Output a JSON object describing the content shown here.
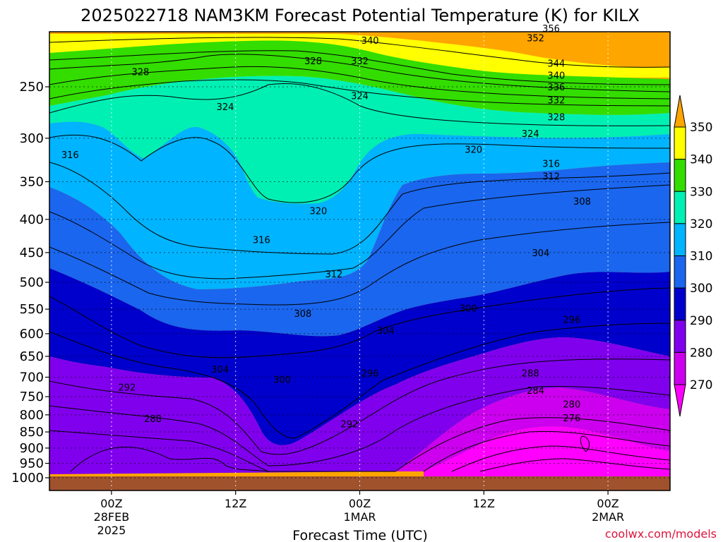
{
  "header": {
    "title": "2025022718 NAM3KM Forecast Potential Temperature (K) for KILX"
  },
  "footer": {
    "credit": "coolwx.com/models"
  },
  "chart_data": {
    "type": "heatmap",
    "title": "2025022718 NAM3KM Forecast Potential Temperature (K) for KILX",
    "xlabel": "Forecast Time (UTC)",
    "ylabel": "",
    "x_ticks": [
      {
        "hour": 6,
        "lines": [
          "00Z",
          "28FEB",
          "2025"
        ]
      },
      {
        "hour": 18,
        "lines": [
          "12Z"
        ]
      },
      {
        "hour": 30,
        "lines": [
          "00Z",
          "1MAR"
        ]
      },
      {
        "hour": 42,
        "lines": [
          "12Z"
        ]
      },
      {
        "hour": 54,
        "lines": [
          "00Z",
          "2MAR"
        ]
      }
    ],
    "xlim_hours": [
      0,
      60
    ],
    "y_ticks": [
      250,
      300,
      350,
      400,
      450,
      500,
      550,
      600,
      650,
      700,
      750,
      800,
      850,
      900,
      950,
      1000
    ],
    "ylim_hpa": [
      1016,
      200
    ],
    "y_scale": "log-pressure",
    "grid": true,
    "colorbar": {
      "levels": [
        270,
        280,
        290,
        300,
        310,
        320,
        330,
        340,
        350
      ],
      "labels": [
        "270",
        "280",
        "290",
        "300",
        "310",
        "320",
        "330",
        "340",
        "350"
      ],
      "colors": [
        "#ff00ff",
        "#cc00ee",
        "#8000ee",
        "#0000cc",
        "#1a66ee",
        "#00b4ff",
        "#00f0b4",
        "#33dd00",
        "#ffff00",
        "#ffa500"
      ]
    },
    "contour_interval": 4,
    "contour_labels": [
      {
        "value": "356",
        "hour": 48.5,
        "p": 203
      },
      {
        "value": "352",
        "hour": 47.0,
        "p": 210
      },
      {
        "value": "340",
        "hour": 31.0,
        "p": 212
      },
      {
        "value": "332",
        "hour": 30.0,
        "p": 228
      },
      {
        "value": "328",
        "hour": 25.5,
        "p": 228
      },
      {
        "value": "328",
        "hour": 8.8,
        "p": 237
      },
      {
        "value": "344",
        "hour": 49.0,
        "p": 230
      },
      {
        "value": "340",
        "hour": 49.0,
        "p": 240
      },
      {
        "value": "336",
        "hour": 49.0,
        "p": 250
      },
      {
        "value": "332",
        "hour": 49.0,
        "p": 262
      },
      {
        "value": "324",
        "hour": 30.0,
        "p": 258
      },
      {
        "value": "324",
        "hour": 17.0,
        "p": 268
      },
      {
        "value": "328",
        "hour": 49.0,
        "p": 278
      },
      {
        "value": "324",
        "hour": 46.5,
        "p": 295
      },
      {
        "value": "320",
        "hour": 41.0,
        "p": 312
      },
      {
        "value": "316",
        "hour": 2.0,
        "p": 318
      },
      {
        "value": "316",
        "hour": 48.5,
        "p": 328
      },
      {
        "value": "312",
        "hour": 48.5,
        "p": 343
      },
      {
        "value": "308",
        "hour": 51.5,
        "p": 375
      },
      {
        "value": "320",
        "hour": 26.0,
        "p": 388
      },
      {
        "value": "316",
        "hour": 20.5,
        "p": 430
      },
      {
        "value": "304",
        "hour": 47.5,
        "p": 450
      },
      {
        "value": "312",
        "hour": 27.5,
        "p": 485
      },
      {
        "value": "308",
        "hour": 24.5,
        "p": 558
      },
      {
        "value": "300",
        "hour": 40.5,
        "p": 548
      },
      {
        "value": "296",
        "hour": 50.5,
        "p": 570
      },
      {
        "value": "304",
        "hour": 32.5,
        "p": 593
      },
      {
        "value": "304",
        "hour": 16.5,
        "p": 680
      },
      {
        "value": "300",
        "hour": 22.5,
        "p": 705
      },
      {
        "value": "296",
        "hour": 31.0,
        "p": 690
      },
      {
        "value": "288",
        "hour": 46.5,
        "p": 690
      },
      {
        "value": "292",
        "hour": 7.5,
        "p": 725
      },
      {
        "value": "284",
        "hour": 47.0,
        "p": 733
      },
      {
        "value": "280",
        "hour": 50.5,
        "p": 770
      },
      {
        "value": "288",
        "hour": 10.0,
        "p": 810
      },
      {
        "value": "276",
        "hour": 50.5,
        "p": 808
      },
      {
        "value": "292",
        "hour": 29.0,
        "p": 826
      }
    ]
  }
}
